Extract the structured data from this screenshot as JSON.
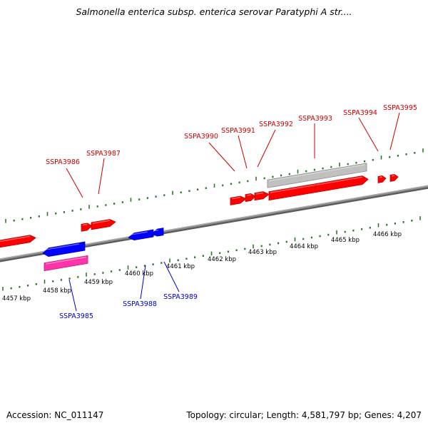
{
  "header": {
    "title": "Salmonella enterica subsp. enterica serovar Paratyphi A str...."
  },
  "footer": {
    "accession": "Accession: NC_011147",
    "summary": "Topology: circular; Length: 4,581,797 bp; Genes: 4,207"
  },
  "colors": {
    "forward_gene": "#ff0000",
    "reverse_gene": "#0000ff",
    "forward_label": "#cc0000",
    "reverse_label": "#0000cc",
    "grey_feature": "#c0c0c0",
    "pink_feature": "#ff33aa",
    "tick": "#2a7a2a",
    "backbone": "#8a8a8a"
  },
  "scale": {
    "labels": [
      "4457 kbp",
      "4458 kbp",
      "4459 kbp",
      "4460 kbp",
      "4461 kbp",
      "4462 kbp",
      "4463 kbp",
      "4464 kbp",
      "4465 kbp",
      "4466 kbp"
    ]
  },
  "genes": {
    "forward": [
      "SSPA3986",
      "SSPA3987",
      "SSPA3990",
      "SSPA3991",
      "SSPA3992",
      "SSPA3993",
      "SSPA3994",
      "SSPA3995"
    ],
    "reverse": [
      "SSPA3985",
      "SSPA3988",
      "SSPA3989"
    ]
  }
}
